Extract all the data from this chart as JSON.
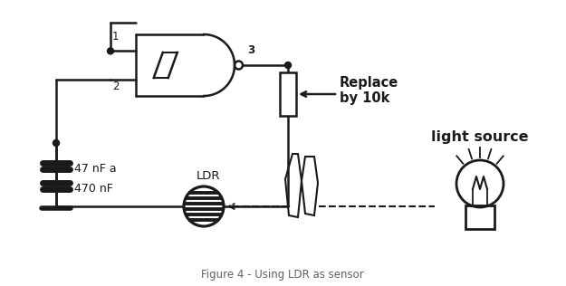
{
  "bg_color": "#ffffff",
  "line_color": "#1a1a1a",
  "title": "Figure 4 - Using LDR as sensor",
  "replace_text": "Replace\nby 10k",
  "ldr_text": "LDR",
  "light_source_text": "light source",
  "cap_text1": "47 nF a",
  "cap_text2": "470 nF",
  "pin1": "1",
  "pin2": "2",
  "pin3": "3",
  "figsize": [
    6.25,
    3.16
  ],
  "dpi": 100,
  "xlim": [
    0,
    625
  ],
  "ylim": [
    0,
    316
  ]
}
